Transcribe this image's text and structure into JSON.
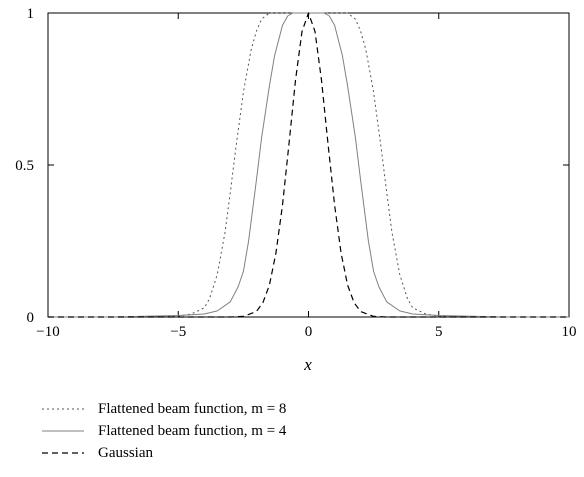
{
  "chart_data": {
    "type": "line",
    "title": "",
    "xlabel": "x",
    "ylabel": "",
    "xlim": [
      -10,
      10
    ],
    "ylim": [
      0,
      1
    ],
    "xticks": [
      "−10",
      "−5",
      "0",
      "5",
      "10"
    ],
    "yticks": [
      "0",
      "0.5",
      "1"
    ],
    "grid": false,
    "legend_position": "bottom-left, below plot",
    "series": [
      {
        "name": "Flattened beam function, m = 8",
        "style": "dotted",
        "color": "#555555",
        "x": [
          -10,
          -7.5,
          -5,
          -4.5,
          -4,
          -3.8,
          -3.5,
          -3.2,
          -3,
          -2.8,
          -2.5,
          -2.2,
          -2,
          -1.8,
          -1.5,
          -1.2,
          -1,
          0,
          1,
          1.2,
          1.5,
          1.8,
          2,
          2.2,
          2.5,
          2.8,
          3,
          3.2,
          3.5,
          3.8,
          4,
          4.5,
          5,
          7.5,
          10
        ],
        "y": [
          0,
          0,
          0.003,
          0.01,
          0.03,
          0.06,
          0.14,
          0.28,
          0.41,
          0.55,
          0.74,
          0.88,
          0.94,
          0.98,
          1,
          1,
          1,
          1,
          1,
          1,
          1,
          0.98,
          0.94,
          0.88,
          0.74,
          0.55,
          0.41,
          0.28,
          0.14,
          0.06,
          0.03,
          0.01,
          0.003,
          0,
          0
        ]
      },
      {
        "name": "Flattened beam function, m = 4",
        "style": "solid",
        "color": "#808080",
        "x": [
          -10,
          -7.5,
          -5,
          -4,
          -3.5,
          -3,
          -2.7,
          -2.5,
          -2.3,
          -2,
          -1.8,
          -1.5,
          -1.3,
          -1,
          -0.8,
          -0.6,
          0,
          0.6,
          0.8,
          1,
          1.3,
          1.5,
          1.8,
          2,
          2.3,
          2.5,
          2.7,
          3,
          3.5,
          4,
          5,
          7.5,
          10
        ],
        "y": [
          0,
          0,
          0.005,
          0.01,
          0.02,
          0.05,
          0.1,
          0.15,
          0.25,
          0.45,
          0.59,
          0.76,
          0.86,
          0.96,
          0.99,
          1,
          1,
          1,
          0.99,
          0.96,
          0.86,
          0.76,
          0.59,
          0.45,
          0.25,
          0.15,
          0.1,
          0.05,
          0.02,
          0.01,
          0.005,
          0,
          0
        ]
      },
      {
        "name": "Gaussian",
        "style": "dashed",
        "color": "#000000",
        "x": [
          -10,
          -3,
          -2.5,
          -2,
          -1.75,
          -1.5,
          -1.25,
          -1,
          -0.75,
          -0.5,
          -0.25,
          0,
          0.25,
          0.5,
          0.75,
          1,
          1.25,
          1.5,
          1.75,
          2,
          2.5,
          3,
          10
        ],
        "y": [
          0,
          0,
          0.002,
          0.018,
          0.047,
          0.105,
          0.21,
          0.368,
          0.57,
          0.779,
          0.939,
          1,
          0.939,
          0.779,
          0.57,
          0.368,
          0.21,
          0.105,
          0.047,
          0.018,
          0.002,
          0,
          0
        ]
      }
    ]
  }
}
